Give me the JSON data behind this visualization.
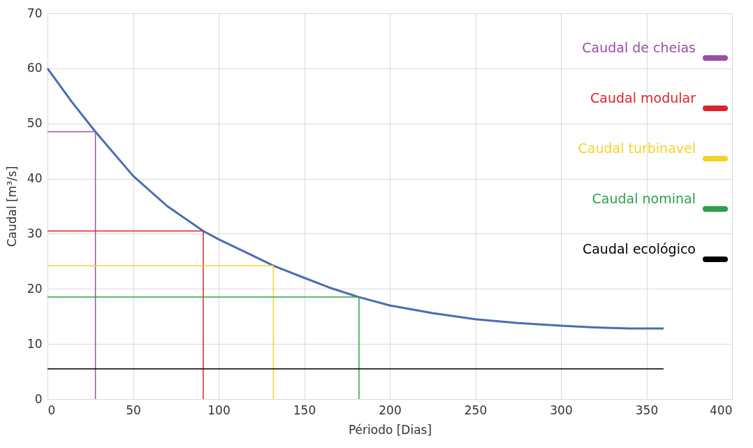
{
  "chart_data": {
    "type": "line",
    "xlabel": "Périodo [Dias]",
    "ylabel": "Caudal [m³/s]",
    "xlim": [
      0,
      400
    ],
    "xticks": [
      0,
      50,
      100,
      150,
      200,
      250,
      300,
      350,
      400
    ],
    "ylim": [
      0,
      70
    ],
    "yticks": [
      0,
      10,
      20,
      30,
      40,
      50,
      60,
      70
    ],
    "grid": true,
    "legend": "top right",
    "marker": "none",
    "line_style": "solid",
    "series": [
      {
        "color": "#4a6cb3",
        "x": [
          0,
          14,
          28,
          50,
          70,
          91,
          100,
          120,
          132,
          150,
          165,
          182,
          200,
          225,
          250,
          275,
          300,
          320,
          340,
          360
        ],
        "values": [
          60,
          54,
          48.5,
          40.5,
          35,
          30.5,
          29,
          26,
          24.2,
          22,
          20.2,
          18.5,
          17,
          15.6,
          14.5,
          13.8,
          13.3,
          13,
          12.8,
          12.8
        ]
      },
      {
        "name": "Caudal de cheias",
        "color": "#9b4fa8",
        "x": [
          0,
          28,
          28
        ],
        "values": [
          48.5,
          48.5,
          0
        ]
      },
      {
        "name": "Caudal modular",
        "color": "#d9232d",
        "x": [
          0,
          91,
          91
        ],
        "values": [
          30.5,
          30.5,
          0
        ]
      },
      {
        "name": "Caudal turbinavel",
        "color": "#f2d32a",
        "x": [
          0,
          132,
          132
        ],
        "values": [
          24.2,
          24.2,
          0
        ]
      },
      {
        "name": "Caudal nominal",
        "color": "#2e9e4f",
        "x": [
          0,
          182,
          182
        ],
        "values": [
          18.5,
          18.5,
          0
        ]
      },
      {
        "name": "Caudal ecológico",
        "color": "#000000",
        "x": [
          0,
          360
        ],
        "values": [
          5.5,
          5.5
        ]
      }
    ]
  }
}
